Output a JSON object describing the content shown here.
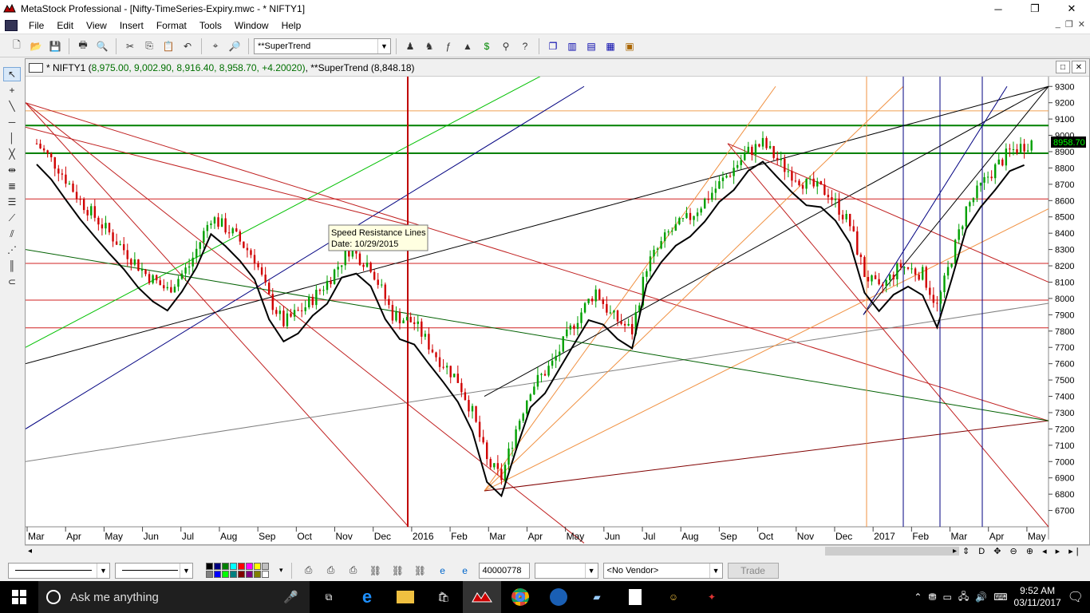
{
  "window": {
    "title": "MetaStock Professional - [Nifty-TimeSeries-Expiry.mwc - * NIFTY1]",
    "minimize": "─",
    "maximize": "❐",
    "close": "✕"
  },
  "menu": {
    "items": [
      "File",
      "Edit",
      "View",
      "Insert",
      "Format",
      "Tools",
      "Window",
      "Help"
    ],
    "mdi_min": "_",
    "mdi_restore": "❐",
    "mdi_close": "✕"
  },
  "toolbar": {
    "indicator_combo": "**SuperTrend"
  },
  "chart_header": {
    "prefix": "* NIFTY1 (",
    "values": "8,975.00, 9,002.90, 8,916.40, 8,958.70, +4.20020)",
    "suffix": ", **SuperTrend (8,848.18)"
  },
  "chart_data": {
    "type": "candlestick",
    "title": "",
    "symbol": "NIFTY1",
    "y_axis": {
      "ticks": [
        6700,
        6800,
        6900,
        7000,
        7100,
        7200,
        7300,
        7400,
        7500,
        7600,
        7700,
        7800,
        7900,
        8000,
        8100,
        8200,
        8300,
        8400,
        8500,
        8600,
        8700,
        8800,
        8900,
        9000,
        9100,
        9200,
        9300
      ],
      "range": [
        6600,
        9360
      ]
    },
    "x_axis": {
      "labels": [
        "Mar",
        "Apr",
        "May",
        "Jun",
        "Jul",
        "Aug",
        "Sep",
        "Oct",
        "Nov",
        "Dec",
        "2016",
        "Feb",
        "Mar",
        "Apr",
        "May",
        "Jun",
        "Jul",
        "Aug",
        "Sep",
        "Oct",
        "Nov",
        "Dec",
        "2017",
        "Feb",
        "Mar",
        "Apr",
        "May"
      ]
    },
    "last_price_label": "8958.70",
    "last_price": 8958.7,
    "supertrend_last": 8848.18,
    "price_path": [
      [
        0,
        8950
      ],
      [
        6,
        8800
      ],
      [
        12,
        8600
      ],
      [
        18,
        8450
      ],
      [
        24,
        8300
      ],
      [
        30,
        8150
      ],
      [
        36,
        8050
      ],
      [
        42,
        8200
      ],
      [
        48,
        8500
      ],
      [
        54,
        8400
      ],
      [
        60,
        8250
      ],
      [
        64,
        8000
      ],
      [
        68,
        7850
      ],
      [
        74,
        7950
      ],
      [
        80,
        8100
      ],
      [
        86,
        8300
      ],
      [
        92,
        8200
      ],
      [
        98,
        7900
      ],
      [
        104,
        7850
      ],
      [
        110,
        7650
      ],
      [
        116,
        7500
      ],
      [
        120,
        7300
      ],
      [
        124,
        7000
      ],
      [
        128,
        6900
      ],
      [
        132,
        7200
      ],
      [
        136,
        7450
      ],
      [
        142,
        7600
      ],
      [
        148,
        7850
      ],
      [
        154,
        8050
      ],
      [
        158,
        7900
      ],
      [
        164,
        7800
      ],
      [
        168,
        8200
      ],
      [
        174,
        8400
      ],
      [
        180,
        8500
      ],
      [
        186,
        8650
      ],
      [
        190,
        8750
      ],
      [
        196,
        8900
      ],
      [
        200,
        8950
      ],
      [
        206,
        8800
      ],
      [
        212,
        8700
      ],
      [
        218,
        8650
      ],
      [
        224,
        8450
      ],
      [
        228,
        8150
      ],
      [
        232,
        8050
      ],
      [
        238,
        8200
      ],
      [
        244,
        8150
      ],
      [
        248,
        7950
      ],
      [
        252,
        8250
      ],
      [
        256,
        8550
      ],
      [
        262,
        8750
      ],
      [
        268,
        8900
      ],
      [
        274,
        8960
      ]
    ],
    "horizontal_levels": [
      {
        "value": 9060,
        "color": "#008000"
      },
      {
        "value": 8890,
        "color": "#008000"
      },
      {
        "value": 9150,
        "color": "#f0a050"
      },
      {
        "value": 8610,
        "color": "#d02020"
      },
      {
        "value": 8215,
        "color": "#d02020"
      },
      {
        "value": 7990,
        "color": "#d02020"
      },
      {
        "value": 7820,
        "color": "#d02020"
      }
    ],
    "annotation": {
      "title": "Speed Resistance Lines",
      "date": "Date: 10/29/2015"
    }
  },
  "status": {
    "value_box": "40000778",
    "vendor": "<No Vendor>",
    "trade": "Trade",
    "swatch_colors": [
      "#000000",
      "#000080",
      "#008000",
      "#00ffff",
      "#ff0000",
      "#ff00ff",
      "#ffff00",
      "#c0c0c0",
      "#808080",
      "#0000ff",
      "#00ff00",
      "#008080",
      "#800000",
      "#800080",
      "#808000",
      "#ffffff"
    ]
  },
  "taskbar": {
    "search_placeholder": "Ask me anything",
    "time": "9:52 AM",
    "date": "03/11/2017"
  }
}
